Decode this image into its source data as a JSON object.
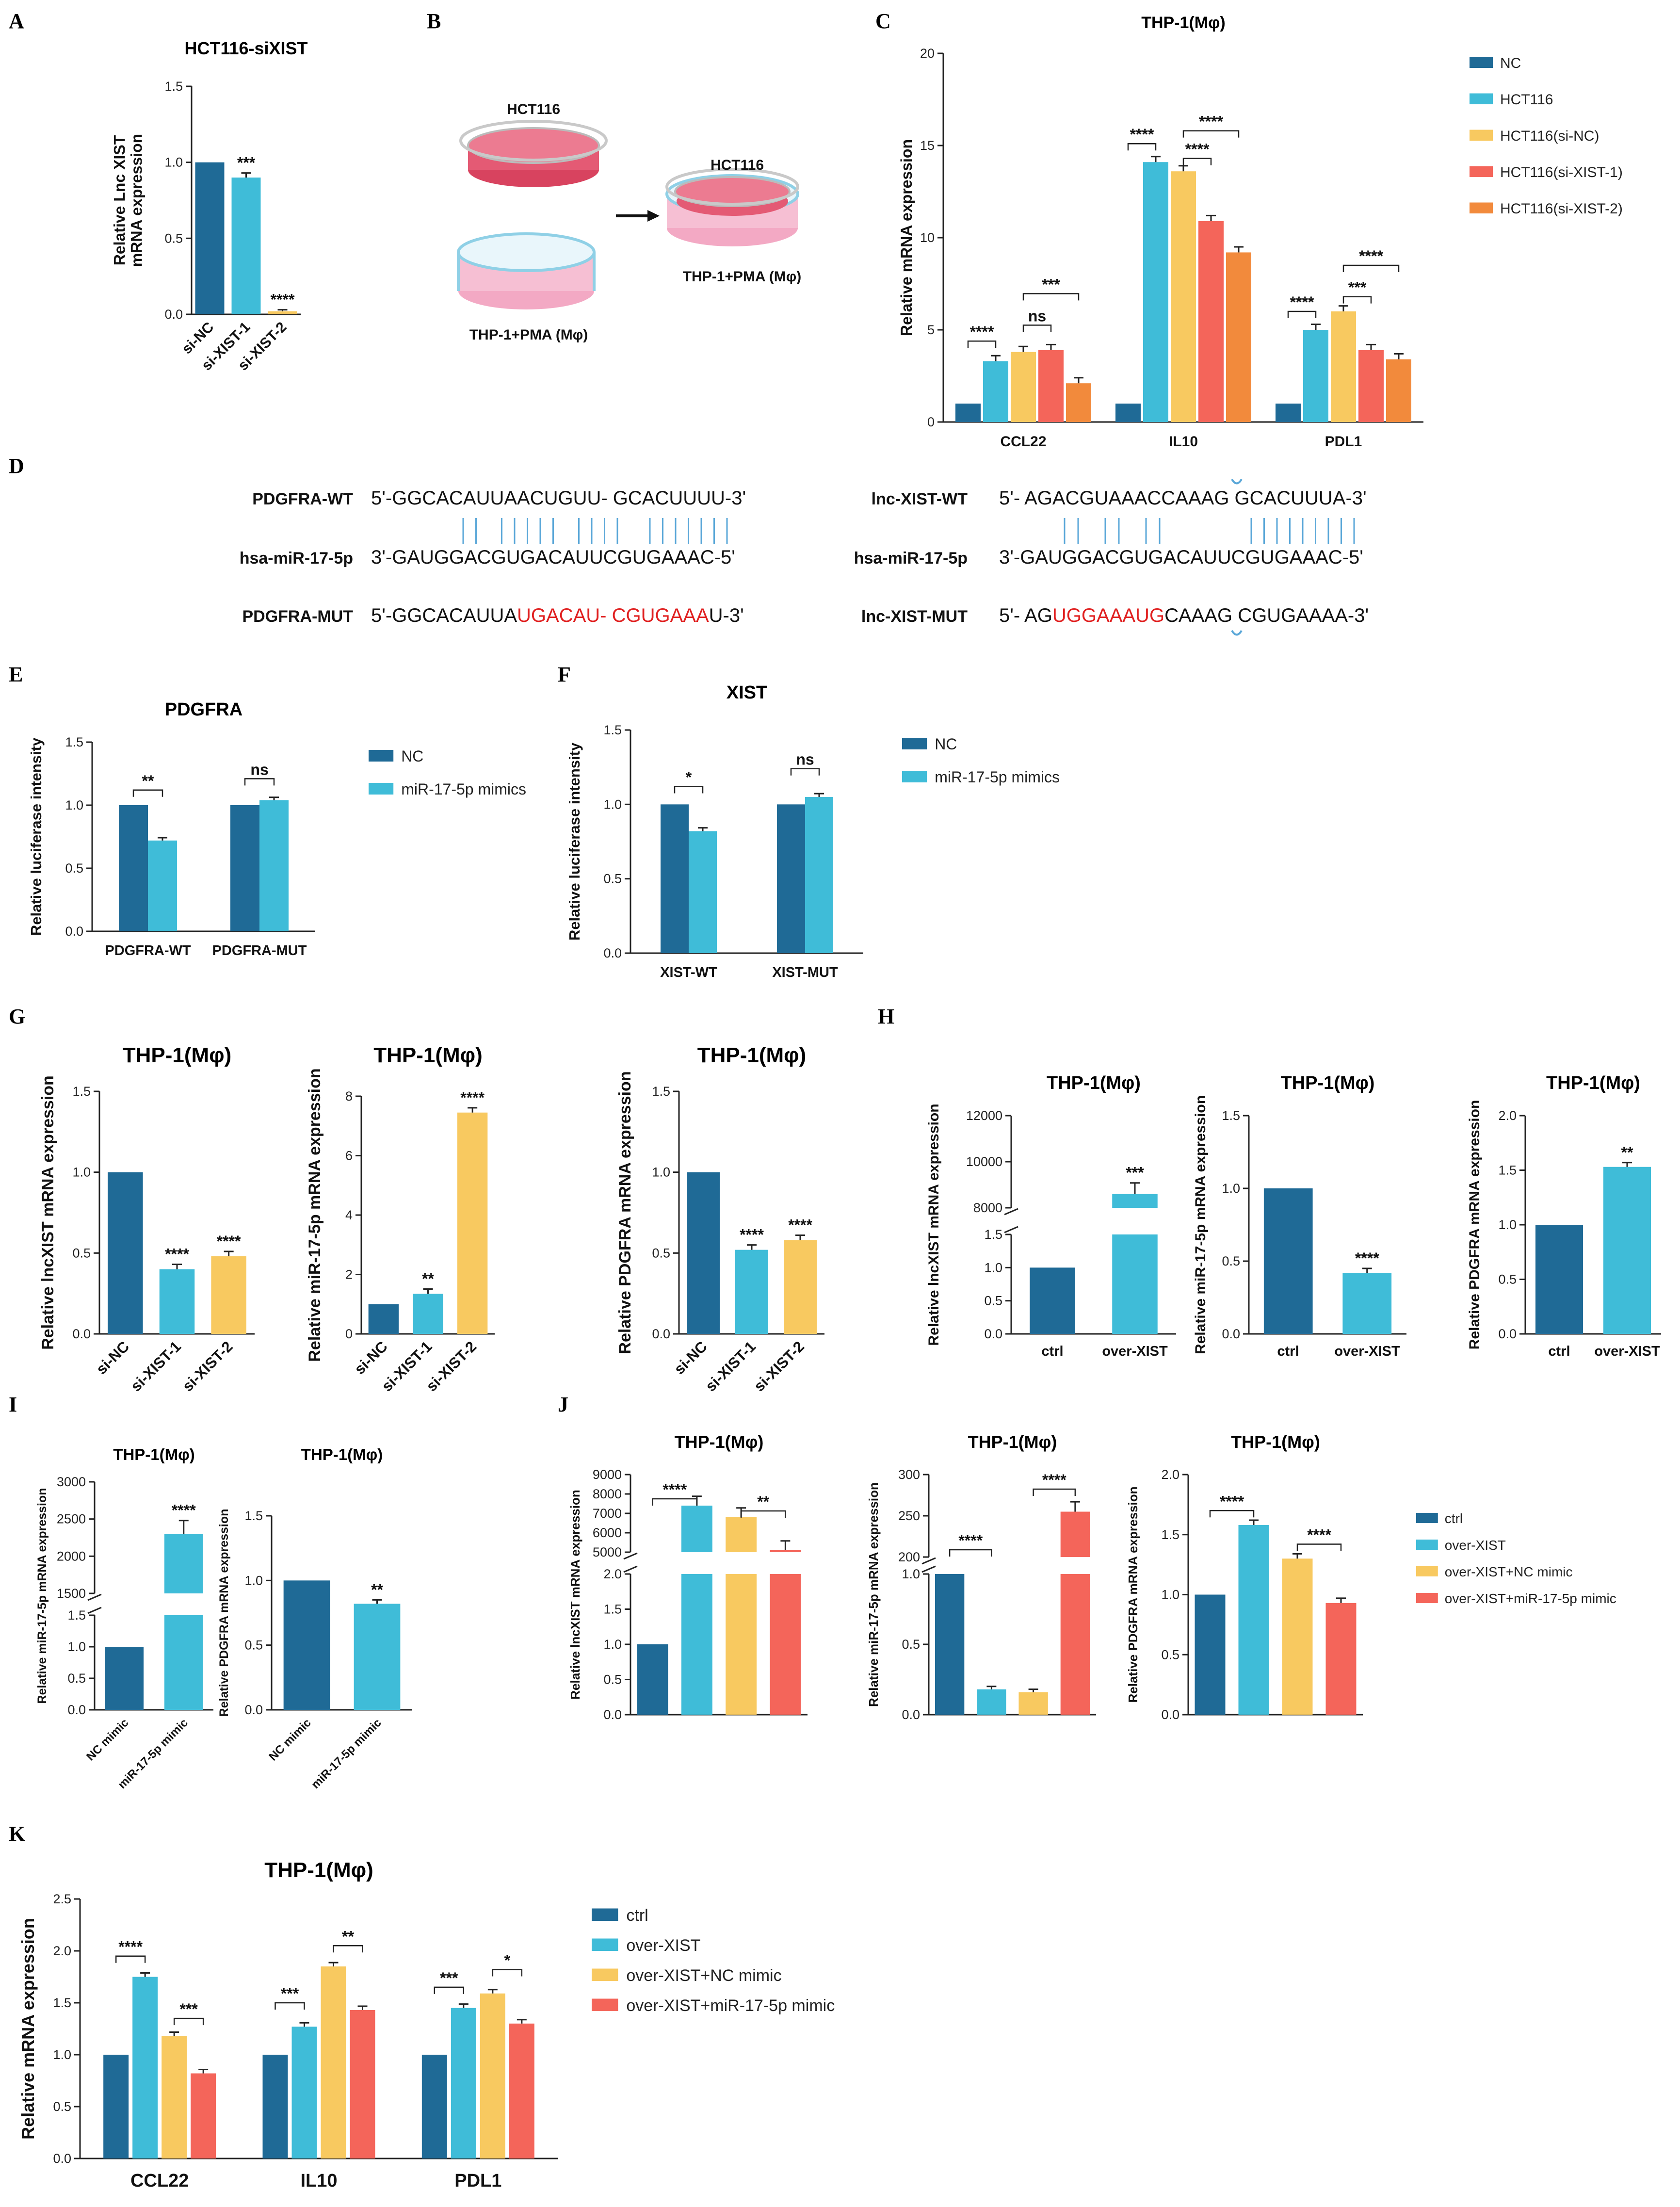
{
  "colors": {
    "c1": "#1f6a96",
    "c2": "#3fbcd8",
    "c3": "#f8c960",
    "c4": "#f4655a",
    "c5": "#f28a3c",
    "axis": "#222222",
    "link": "#5aa7d8"
  },
  "panel_labels": {
    "A": "A",
    "B": "B",
    "C": "C",
    "D": "D",
    "E": "E",
    "F": "F",
    "G": "G",
    "H": "H",
    "I": "I",
    "J": "J",
    "K": "K"
  },
  "panel_b": {
    "hct_top": "HCT116",
    "hct_right": "HCT116",
    "thp_left": "THP-1+PMA (Mφ)",
    "thp_right": "THP-1+PMA (Mφ)"
  },
  "panel_d": {
    "left_rows": [
      {
        "label": "PDGFRA-WT",
        "pre": "5'-GGCACAUUAACUGUU- GCACUUUU-3'",
        "red": "",
        "post": ""
      },
      {
        "label": "hsa-miR-17-5p",
        "pre": "3'-GAUGGACGUGACAUUCGUGAAAC-5'",
        "red": "",
        "post": ""
      },
      {
        "label": "PDGFRA-MUT",
        "pre": "5'-GGCACAUUA",
        "red": "UGACAU- CGUGAAA",
        "post": "U-3'"
      }
    ],
    "right_rows": [
      {
        "label": "lnc-XIST-WT",
        "pre": "5'- AGACGUAAACCAAAG GCACUUUA-3'",
        "red": "",
        "post": ""
      },
      {
        "label": "hsa-miR-17-5p",
        "pre": "3'-GAUGGACGUGACAUUCGUGAAAC-5'",
        "red": "",
        "post": ""
      },
      {
        "label": "lnc-XIST-MUT",
        "pre": "5'- AG",
        "red": "UGGAAAUG",
        "post": "CAAAG CGUGAAAA-3'"
      }
    ]
  },
  "chart_data": [
    {
      "id": "A",
      "type": "bar",
      "title": "HCT116-siXIST",
      "ylabel": [
        "Relative Lnc XIST",
        "mRNA expression"
      ],
      "ylim": [
        0,
        1.5
      ],
      "yticks": [
        "0.0",
        "0.5",
        "1.0",
        "1.5"
      ],
      "categories": [
        "si-NC",
        "si-XIST-1",
        "si-XIST-2"
      ],
      "values": [
        1.0,
        0.9,
        0.02
      ],
      "errors": [
        0,
        0.03,
        0.01
      ],
      "colors": [
        "c1",
        "c2",
        "c3"
      ],
      "stars": [
        "",
        "***",
        "****"
      ]
    },
    {
      "id": "C",
      "type": "bar",
      "title": "THP-1(Mφ)",
      "ylabel": [
        "Relative mRNA expression"
      ],
      "ylim": [
        0,
        20
      ],
      "yticks": [
        "0",
        "5",
        "10",
        "15",
        "20"
      ],
      "groups": [
        "CCL22",
        "IL10",
        "PDL1"
      ],
      "series": [
        {
          "name": "NC",
          "values": [
            1,
            1,
            1
          ]
        },
        {
          "name": "HCT116",
          "values": [
            3.3,
            14.1,
            5.0
          ]
        },
        {
          "name": "HCT116(si-NC)",
          "values": [
            3.8,
            13.6,
            6.0
          ]
        },
        {
          "name": "HCT116(si-XIST-1)",
          "values": [
            3.9,
            10.9,
            3.9
          ]
        },
        {
          "name": "HCT116(si-XIST-2)",
          "values": [
            2.1,
            9.2,
            3.4
          ]
        }
      ],
      "comparisons": [
        "****",
        "ns",
        "***",
        "****",
        "****",
        "****",
        "****",
        "***",
        "****"
      ]
    },
    {
      "id": "E",
      "type": "bar",
      "title": "PDGFRA",
      "ylabel": [
        "Relative luciferase intensity"
      ],
      "ylim": [
        0,
        1.5
      ],
      "yticks": [
        "0.0",
        "0.5",
        "1.0",
        "1.5"
      ],
      "groups": [
        "PDGFRA-WT",
        "PDGFRA-MUT"
      ],
      "series": [
        {
          "name": "NC",
          "values": [
            1.0,
            1.0
          ]
        },
        {
          "name": "miR-17-5p mimics",
          "values": [
            0.72,
            1.04
          ]
        }
      ],
      "comparisons": [
        "**",
        "ns"
      ]
    },
    {
      "id": "F",
      "type": "bar",
      "title": "XIST",
      "ylabel": [
        "Relative luciferase intensity"
      ],
      "ylim": [
        0,
        1.5
      ],
      "yticks": [
        "0.0",
        "0.5",
        "1.0",
        "1.5"
      ],
      "groups": [
        "XIST-WT",
        "XIST-MUT"
      ],
      "series": [
        {
          "name": "NC",
          "values": [
            1.0,
            1.0
          ]
        },
        {
          "name": "miR-17-5p mimics",
          "values": [
            0.82,
            1.05
          ]
        }
      ],
      "comparisons": [
        "*",
        "ns"
      ]
    },
    {
      "id": "G1",
      "type": "bar",
      "title": "THP-1(Mφ)",
      "ylabel": [
        "Relative lncXIST mRNA expression"
      ],
      "ylim": [
        0,
        1.5
      ],
      "yticks": [
        "0.0",
        "0.5",
        "1.0",
        "1.5"
      ],
      "categories": [
        "si-NC",
        "si-XIST-1",
        "si-XIST-2"
      ],
      "values": [
        1.0,
        0.4,
        0.48
      ],
      "stars": [
        "",
        "****",
        "****"
      ]
    },
    {
      "id": "G2",
      "type": "bar",
      "title": "THP-1(Mφ)",
      "ylabel": [
        "Relative miR-17-5p mRNA expression"
      ],
      "ylim": [
        0,
        8
      ],
      "yticks": [
        "0",
        "2",
        "4",
        "6",
        "8"
      ],
      "categories": [
        "si-NC",
        "si-XIST-1",
        "si-XIST-2"
      ],
      "values": [
        1.0,
        1.35,
        7.45
      ],
      "stars": [
        "",
        "**",
        "****"
      ]
    },
    {
      "id": "G3",
      "type": "bar",
      "title": "THP-1(Mφ)",
      "ylabel": [
        "Relative PDGFRA mRNA expression"
      ],
      "ylim": [
        0,
        1.5
      ],
      "yticks": [
        "0.0",
        "0.5",
        "1.0",
        "1.5"
      ],
      "categories": [
        "si-NC",
        "si-XIST-1",
        "si-XIST-2"
      ],
      "values": [
        1.0,
        0.52,
        0.58
      ],
      "stars": [
        "",
        "****",
        "****"
      ]
    },
    {
      "id": "H1",
      "type": "bar",
      "title": "THP-1(Mφ)",
      "ylabel": [
        "Relative lncXIST mRNA expression"
      ],
      "axis_break": true,
      "yticks_low": [
        "0.0",
        "0.5",
        "1.0",
        "1.5"
      ],
      "yticks_high": [
        "8000",
        "10000",
        "12000"
      ],
      "categories": [
        "ctrl",
        "over-XIST"
      ],
      "values": [
        1.0,
        8600
      ],
      "stars": [
        "",
        "***"
      ]
    },
    {
      "id": "H2",
      "type": "bar",
      "title": "THP-1(Mφ)",
      "ylabel": [
        "Relative miR-17-5p mRNA expression"
      ],
      "ylim": [
        0,
        1.5
      ],
      "yticks": [
        "0.0",
        "0.5",
        "1.0",
        "1.5"
      ],
      "categories": [
        "ctrl",
        "over-XIST"
      ],
      "values": [
        1.0,
        0.42
      ],
      "stars": [
        "",
        "****"
      ]
    },
    {
      "id": "H3",
      "type": "bar",
      "title": "THP-1(Mφ)",
      "ylabel": [
        "Relative PDGFRA mRNA expression"
      ],
      "ylim": [
        0,
        2.0
      ],
      "yticks": [
        "0.0",
        "0.5",
        "1.0",
        "1.5",
        "2.0"
      ],
      "categories": [
        "ctrl",
        "over-XIST"
      ],
      "values": [
        1.0,
        1.53
      ],
      "stars": [
        "",
        "**"
      ]
    },
    {
      "id": "I1",
      "type": "bar",
      "title": "THP-1(Mφ)",
      "ylabel": [
        "Relative miR-17-5p mRNA expression"
      ],
      "axis_break": true,
      "yticks_low": [
        "0.0",
        "0.5",
        "1.0",
        "1.5"
      ],
      "yticks_high": [
        "1500",
        "2000",
        "2500",
        "3000"
      ],
      "categories": [
        "NC mimic",
        "miR-17-5p mimic"
      ],
      "values": [
        1.0,
        2300
      ],
      "stars": [
        "",
        "****"
      ]
    },
    {
      "id": "I2",
      "type": "bar",
      "title": "THP-1(Mφ)",
      "ylabel": [
        "Relative PDGFRA mRNA expression"
      ],
      "ylim": [
        0,
        1.5
      ],
      "yticks": [
        "0.0",
        "0.5",
        "1.0",
        "1.5"
      ],
      "categories": [
        "NC mimic",
        "miR-17-5p mimic"
      ],
      "values": [
        1.0,
        0.82
      ],
      "stars": [
        "",
        "**"
      ]
    },
    {
      "id": "J1",
      "type": "bar",
      "title": "THP-1(Mφ)",
      "ylabel": [
        "Relative lncXIST mRNA expression"
      ],
      "axis_break": true,
      "yticks_low": [
        "0.0",
        "0.5",
        "1.0",
        "1.5",
        "2.0"
      ],
      "yticks_high": [
        "5000",
        "6000",
        "7000",
        "8000",
        "9000"
      ],
      "categories": [
        "ctrl",
        "over-XIST",
        "over-XIST+NC mimic",
        "over-XIST+miR-17-5p mimic"
      ],
      "values": [
        1.0,
        7400,
        6800,
        5100
      ],
      "comparisons": [
        "****",
        "**"
      ]
    },
    {
      "id": "J2",
      "type": "bar",
      "title": "THP-1(Mφ)",
      "ylabel": [
        "Relative miR-17-5p mRNA expression"
      ],
      "axis_break": true,
      "yticks_low": [
        "0.0",
        "0.5",
        "1.0"
      ],
      "yticks_high": [
        "200",
        "250",
        "300"
      ],
      "categories": [
        "ctrl",
        "over-XIST",
        "over-XIST+NC mimic",
        "over-XIST+miR-17-5p mimic"
      ],
      "values": [
        1.0,
        0.18,
        0.16,
        255
      ],
      "comparisons": [
        "****",
        "****"
      ]
    },
    {
      "id": "J3",
      "type": "bar",
      "title": "THP-1(Mφ)",
      "ylabel": [
        "Relative PDGFRA mRNA expression"
      ],
      "ylim": [
        0,
        2.0
      ],
      "yticks": [
        "0.0",
        "0.5",
        "1.0",
        "1.5",
        "2.0"
      ],
      "categories": [
        "ctrl",
        "over-XIST",
        "over-XIST+NC mimic",
        "over-XIST+miR-17-5p mimic"
      ],
      "values": [
        1.0,
        1.58,
        1.3,
        0.93
      ],
      "comparisons": [
        "****",
        "****"
      ]
    },
    {
      "id": "K",
      "type": "bar",
      "title": "THP-1(Mφ)",
      "ylabel": [
        "Relative mRNA expression"
      ],
      "ylim": [
        0,
        2.5
      ],
      "yticks": [
        "0.0",
        "0.5",
        "1.0",
        "1.5",
        "2.0",
        "2.5"
      ],
      "groups": [
        "CCL22",
        "IL10",
        "PDL1"
      ],
      "series": [
        {
          "name": "ctrl",
          "values": [
            1.0,
            1.0,
            1.0
          ]
        },
        {
          "name": "over-XIST",
          "values": [
            1.75,
            1.27,
            1.45
          ]
        },
        {
          "name": "over-XIST+NC mimic",
          "values": [
            1.18,
            1.85,
            1.59
          ]
        },
        {
          "name": "over-XIST+miR-17-5p mimic",
          "values": [
            0.82,
            1.43,
            1.3
          ]
        }
      ],
      "comparisons": [
        "****",
        "***",
        "***",
        "**",
        "***",
        "*"
      ]
    }
  ]
}
